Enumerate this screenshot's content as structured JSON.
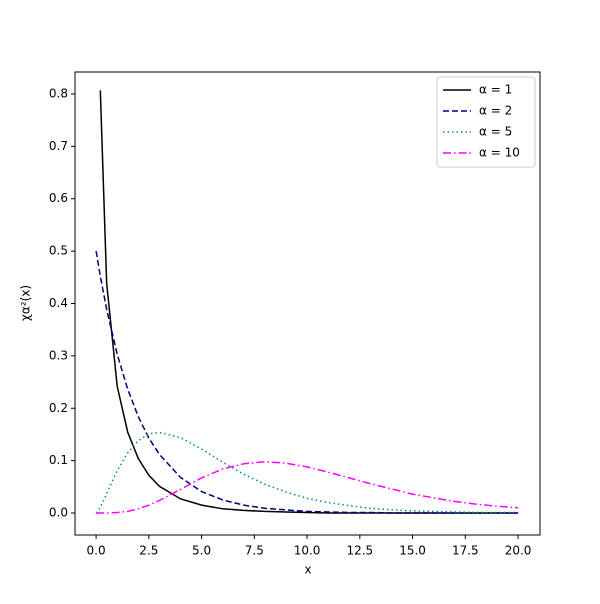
{
  "chart_data": {
    "type": "line",
    "x_label": "x",
    "y_label": "χα²(x)",
    "x": [
      0,
      0.2,
      0.5,
      1,
      1.5,
      2,
      2.5,
      3,
      4,
      5,
      6,
      7,
      8,
      9,
      10,
      11,
      12,
      13,
      14,
      15,
      16,
      17,
      18,
      19,
      20
    ],
    "series": [
      {
        "name": "α = 1",
        "color": "#000000",
        "dash": "solid",
        "values": [
          null,
          0.807,
          0.439,
          0.242,
          0.154,
          0.104,
          0.072,
          0.051,
          0.027,
          0.015,
          0.008,
          0.005,
          0.003,
          0.002,
          0.001,
          0,
          0,
          0,
          0,
          0,
          0,
          0,
          0,
          0,
          0
        ]
      },
      {
        "name": "α = 2",
        "color": "#000080",
        "dash": "dashed",
        "values": [
          0.5,
          0.452,
          0.389,
          0.303,
          0.236,
          0.184,
          0.143,
          0.112,
          0.068,
          0.041,
          0.025,
          0.015,
          0.009,
          0.006,
          0.003,
          0.002,
          0.001,
          0.001,
          0,
          0,
          0,
          0,
          0,
          0,
          0
        ]
      },
      {
        "name": "α = 5",
        "color": "#008b8b",
        "dash": "dotted",
        "values": [
          0,
          0.011,
          0.037,
          0.081,
          0.115,
          0.138,
          0.151,
          0.154,
          0.144,
          0.122,
          0.097,
          0.074,
          0.055,
          0.04,
          0.028,
          0.02,
          0.014,
          0.009,
          0.006,
          0.004,
          0.003,
          0.002,
          0.001,
          0.001,
          0.001
        ]
      },
      {
        "name": "α = 10",
        "color": "#ff00ff",
        "dash": "dashdot",
        "values": [
          0,
          0,
          0,
          0.001,
          0.003,
          0.008,
          0.015,
          0.024,
          0.045,
          0.067,
          0.084,
          0.094,
          0.098,
          0.095,
          0.088,
          0.078,
          0.067,
          0.056,
          0.046,
          0.036,
          0.029,
          0.022,
          0.017,
          0.013,
          0.01
        ]
      }
    ],
    "xlim": [
      -1,
      21.04
    ],
    "ylim": [
      -0.042,
      0.842
    ],
    "xticks": [
      {
        "value": 0,
        "label": "0.0"
      },
      2.5,
      {
        "value": 5,
        "label": "5.0"
      },
      7.5,
      {
        "value": 10,
        "label": "10.0"
      },
      12.5,
      {
        "value": 15,
        "label": "15.0"
      },
      17.5,
      {
        "value": 20,
        "label": "20.0"
      }
    ],
    "yticks": [
      {
        "value": 0,
        "label": "0.0"
      },
      0.1,
      0.2,
      0.3,
      0.4,
      0.5,
      0.6,
      0.7,
      0.8
    ],
    "legend": "upper right"
  }
}
